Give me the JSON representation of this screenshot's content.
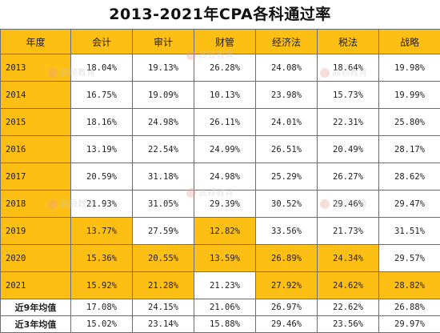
{
  "title": "2013-2021年CPA各科通过率",
  "headers": [
    "年度",
    "会计",
    "审计",
    "财管",
    "经济法",
    "税法",
    "战略"
  ],
  "rows": [
    {
      "year": "2013",
      "values": [
        "18.04%",
        "19.13%",
        "26.28%",
        "24.08%",
        "18.64%",
        "19.98%"
      ],
      "highlight": [
        false,
        false,
        false,
        false,
        false,
        false
      ]
    },
    {
      "year": "2014",
      "values": [
        "16.75%",
        "19.09%",
        "10.13%",
        "23.98%",
        "15.73%",
        "19.99%"
      ],
      "highlight": [
        false,
        false,
        false,
        false,
        false,
        false
      ]
    },
    {
      "year": "2015",
      "values": [
        "18.16%",
        "24.98%",
        "26.11%",
        "24.01%",
        "22.31%",
        "25.80%"
      ],
      "highlight": [
        false,
        false,
        false,
        false,
        false,
        false
      ]
    },
    {
      "year": "2016",
      "values": [
        "13.19%",
        "22.54%",
        "24.99%",
        "26.51%",
        "20.49%",
        "28.17%"
      ],
      "highlight": [
        false,
        false,
        false,
        false,
        false,
        false
      ]
    },
    {
      "year": "2017",
      "values": [
        "20.59%",
        "31.18%",
        "24.98%",
        "25.29%",
        "26.27%",
        "28.62%"
      ],
      "highlight": [
        false,
        false,
        false,
        false,
        false,
        false
      ]
    },
    {
      "year": "2018",
      "values": [
        "21.93%",
        "31.05%",
        "29.39%",
        "30.52%",
        "29.46%",
        "29.47%"
      ],
      "highlight": [
        false,
        false,
        false,
        false,
        false,
        false
      ]
    },
    {
      "year": "2019",
      "values": [
        "13.77%",
        "27.59%",
        "12.82%",
        "33.56%",
        "21.73%",
        "31.51%"
      ],
      "highlight": [
        true,
        false,
        true,
        false,
        false,
        false
      ]
    },
    {
      "year": "2020",
      "values": [
        "15.36%",
        "20.55%",
        "13.59%",
        "26.89%",
        "24.34%",
        "29.57%"
      ],
      "highlight": [
        true,
        true,
        true,
        true,
        true,
        false
      ]
    },
    {
      "year": "2021",
      "values": [
        "15.92%",
        "21.28%",
        "21.23%",
        "27.92%",
        "24.62%",
        "28.82%"
      ],
      "highlight": [
        true,
        true,
        false,
        true,
        true,
        true
      ]
    }
  ],
  "averages": [
    {
      "label": "近9年均值",
      "values": [
        "17.08%",
        "24.15%",
        "21.06%",
        "26.97%",
        "22.62%",
        "26.88%"
      ]
    },
    {
      "label": "近3年均值",
      "values": [
        "15.02%",
        "23.14%",
        "15.88%",
        "29.46%",
        "23.56%",
        "29.97%"
      ]
    }
  ],
  "watermark": "高顿教育",
  "colors": {
    "accent": "#fdbf14",
    "border": "#6e6e6e"
  }
}
